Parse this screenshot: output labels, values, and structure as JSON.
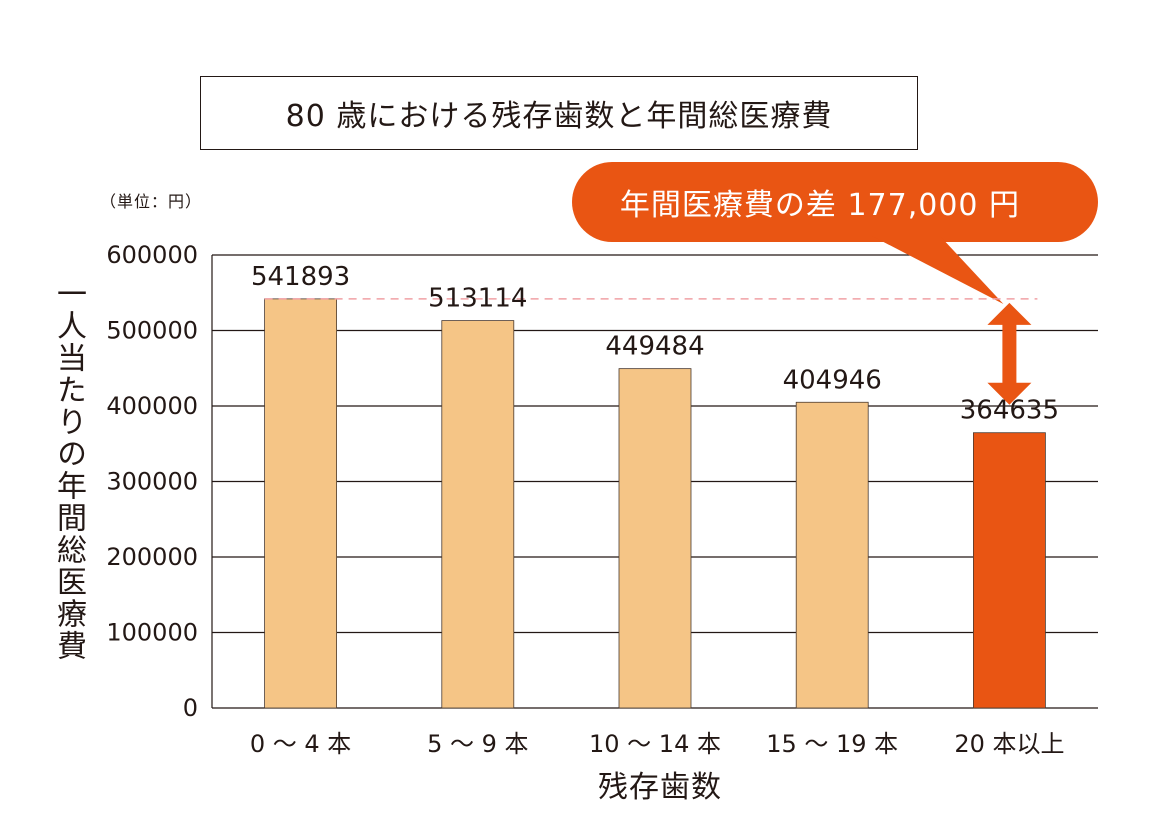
{
  "chart_data": {
    "type": "bar",
    "title": "80 歳における残存歯数と年間総医療費",
    "unit_note": "（単位：円）",
    "xlabel": "残存歯数",
    "ylabel": "一人当たりの年間総医療費",
    "categories": [
      "0 〜 4 本",
      "5 〜 9 本",
      "10 〜 14 本",
      "15 〜 19 本",
      "20 本以上"
    ],
    "values": [
      541893,
      513114,
      449484,
      404946,
      364635
    ],
    "value_labels": [
      "541893",
      "513114",
      "449484",
      "404946",
      "364635"
    ],
    "yticks": [
      "0",
      "100000",
      "200000",
      "300000",
      "400000",
      "500000",
      "600000"
    ],
    "ylim": [
      0,
      600000
    ],
    "grid": true,
    "highlight_index": 4,
    "reference_line_value": 541893,
    "callout": "年間医療費の差 177,000 円",
    "colors": {
      "bar": "#F5C586",
      "bar_highlight": "#E95513",
      "reference_line": "#F0A0A5",
      "callout": "#E95513",
      "grid": "#231815"
    }
  }
}
